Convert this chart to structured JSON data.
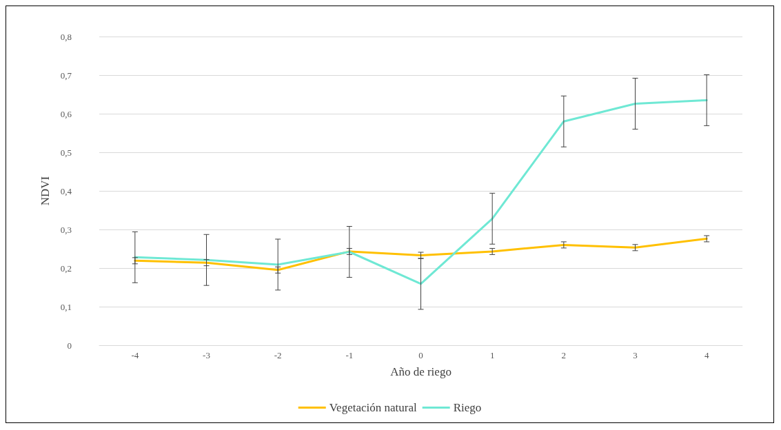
{
  "chart_data": {
    "type": "line",
    "xlabel": "Año de riego",
    "ylabel": "NDVI",
    "categories": [
      "-4",
      "-3",
      "-2",
      "-1",
      "0",
      "1",
      "2",
      "3",
      "4"
    ],
    "series": [
      {
        "name": "Vegetación natural",
        "color": "#ffc000",
        "values": [
          0.219,
          0.214,
          0.195,
          0.243,
          0.233,
          0.243,
          0.26,
          0.253,
          0.276
        ],
        "errors": [
          0.008,
          0.008,
          0.008,
          0.008,
          0.008,
          0.008,
          0.008,
          0.008,
          0.008
        ]
      },
      {
        "name": "Riego",
        "color": "#6fe8d4",
        "values": [
          0.228,
          0.221,
          0.209,
          0.242,
          0.159,
          0.328,
          0.58,
          0.626,
          0.635
        ],
        "errors": [
          0.066,
          0.066,
          0.066,
          0.066,
          0.066,
          0.066,
          0.066,
          0.066,
          0.066
        ]
      }
    ],
    "ylim": [
      0,
      0.8
    ],
    "yticks": [
      0,
      {
        "value": 0.1,
        "label": "0,1"
      },
      {
        "value": 0.2,
        "label": "0,2"
      },
      {
        "value": 0.3,
        "label": "0,3"
      },
      {
        "value": 0.4,
        "label": "0,4"
      },
      {
        "value": 0.5,
        "label": "0,5"
      },
      {
        "value": 0.6,
        "label": "0,6"
      },
      {
        "value": 0.7,
        "label": "0,7"
      },
      {
        "value": 0.8,
        "label": "0,8"
      }
    ],
    "grid": "y",
    "legend": "bottom",
    "marker": "none",
    "line_style": "solid"
  }
}
